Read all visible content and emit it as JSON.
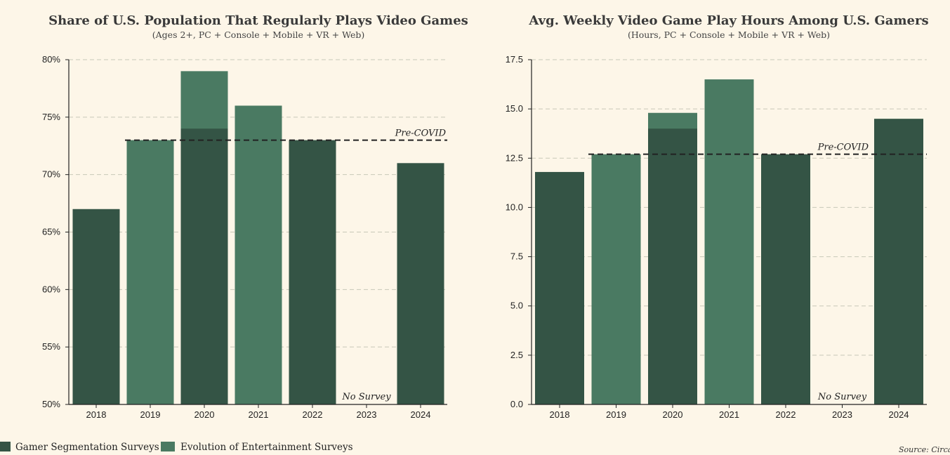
{
  "colors": {
    "gamer_segmentation": "#345445",
    "evolution_entertainment": "#4a7a62",
    "grid": "#c8c8b8",
    "axis": "#222222",
    "background": "#fdf6e8"
  },
  "legend": {
    "gamer_segmentation": "Gamer Segmentation Surveys",
    "evolution_entertainment": "Evolution of Entertainment Surveys"
  },
  "source": "Source: Circa",
  "chart_data": [
    {
      "type": "bar",
      "title": "Share of U.S. Population That Regularly Plays Video Games",
      "subtitle": "(Ages 2+, PC + Console + Mobile + VR + Web)",
      "categories": [
        "2018",
        "2019",
        "2020",
        "2021",
        "2022",
        "2023",
        "2024"
      ],
      "series": [
        {
          "name": "Gamer Segmentation Surveys",
          "key": "gamer_segmentation",
          "values": [
            67,
            null,
            74,
            null,
            73,
            null,
            71
          ]
        },
        {
          "name": "Evolution of Entertainment Surveys",
          "key": "evolution_entertainment",
          "values": [
            null,
            73,
            79,
            76,
            null,
            null,
            null
          ]
        }
      ],
      "ylim": [
        50,
        80
      ],
      "yticks": [
        50,
        55,
        60,
        65,
        70,
        75,
        80
      ],
      "ytick_labels": [
        "50%",
        "55%",
        "60%",
        "65%",
        "70%",
        "75%",
        "80%"
      ],
      "reference_line": {
        "value": 73,
        "label": "Pre-COVID"
      },
      "annotation": {
        "category": "2023",
        "text": "No Survey"
      }
    },
    {
      "type": "bar",
      "title": "Avg. Weekly Video Game Play Hours Among U.S. Gamers",
      "subtitle": "(Hours, PC + Console + Mobile + VR + Web)",
      "categories": [
        "2018",
        "2019",
        "2020",
        "2021",
        "2022",
        "2023",
        "2024"
      ],
      "series": [
        {
          "name": "Gamer Segmentation Surveys",
          "key": "gamer_segmentation",
          "values": [
            11.8,
            null,
            14.0,
            null,
            12.7,
            null,
            14.5
          ]
        },
        {
          "name": "Evolution of Entertainment Surveys",
          "key": "evolution_entertainment",
          "values": [
            null,
            12.7,
            14.8,
            16.5,
            null,
            null,
            null
          ]
        }
      ],
      "ylim": [
        0,
        17.5
      ],
      "yticks": [
        0,
        2.5,
        5,
        7.5,
        10,
        12.5,
        15,
        17.5
      ],
      "ytick_labels": [
        "0.0",
        "2.5",
        "5.0",
        "7.5",
        "10.0",
        "12.5",
        "15.0",
        "17.5"
      ],
      "reference_line": {
        "value": 12.7,
        "label": "Pre-COVID"
      },
      "annotation": {
        "category": "2023",
        "text": "No Survey"
      }
    }
  ]
}
